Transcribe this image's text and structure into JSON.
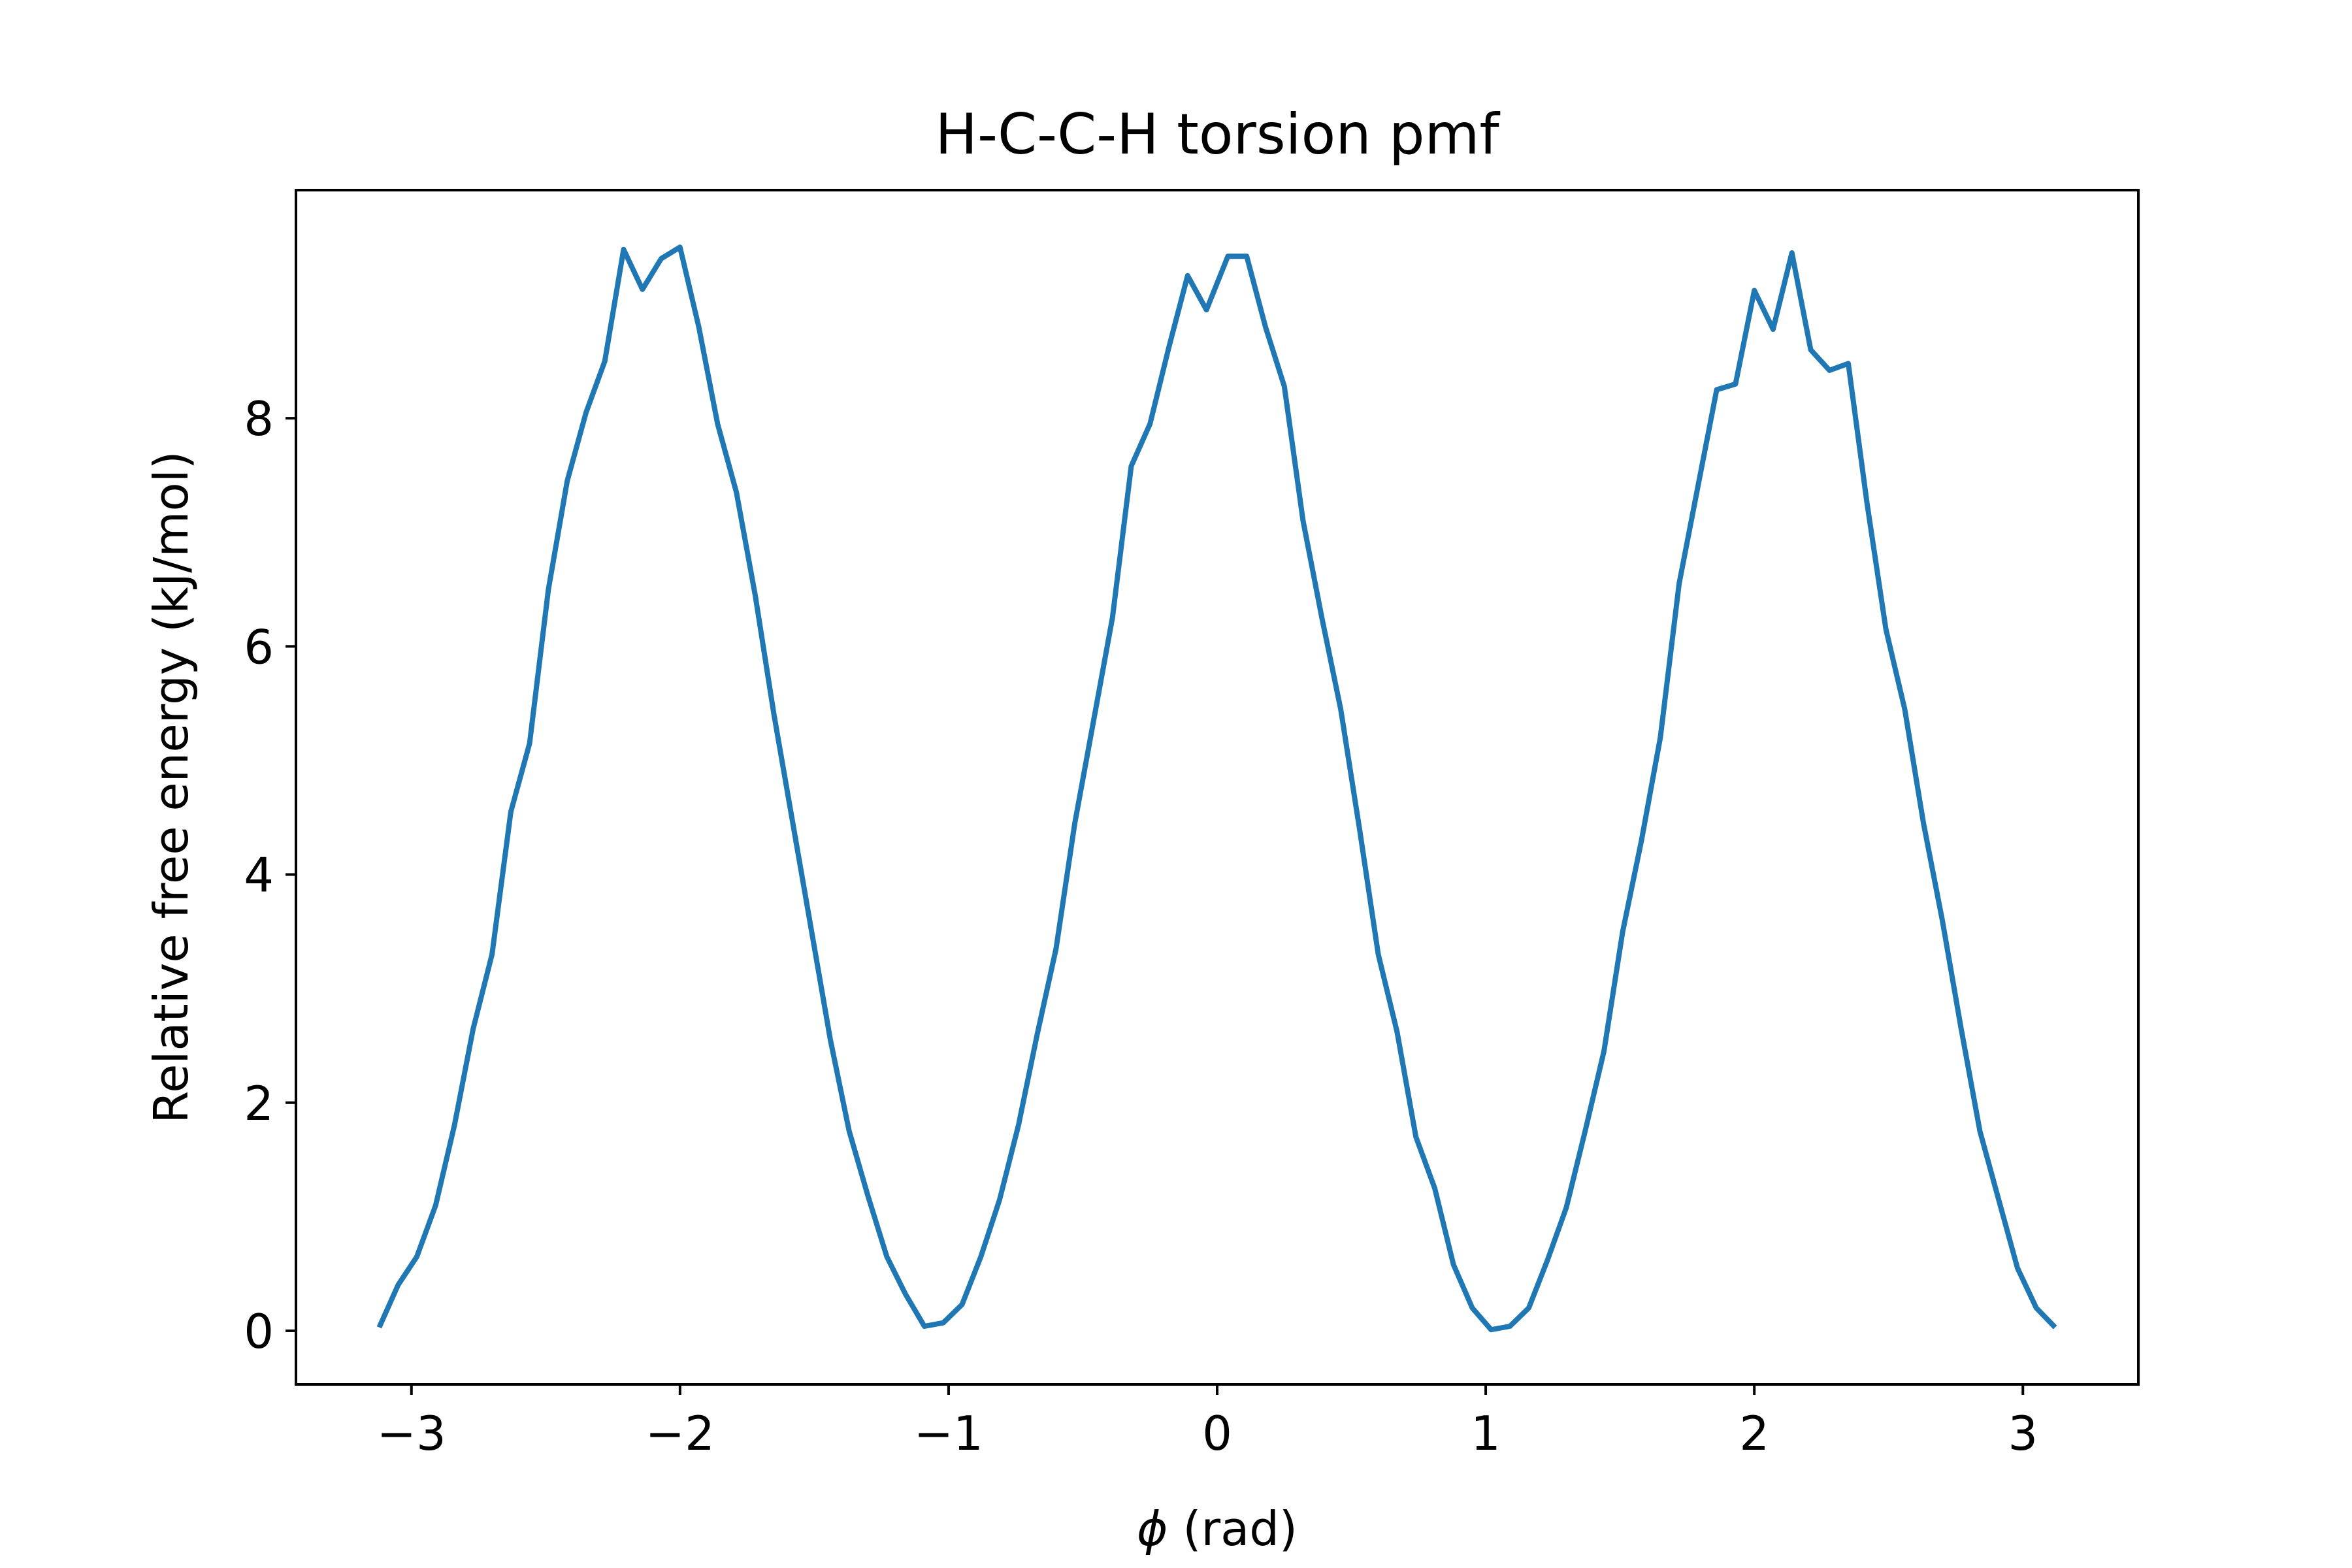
{
  "chart_data": {
    "type": "line",
    "title": "H-C-C-H torsion pmf",
    "xlabel": {
      "symbol": "ϕ",
      "text": " (rad)"
    },
    "ylabel": "Relative free energy (kJ/mol)",
    "xlim": [
      -3.43,
      3.43
    ],
    "ylim": [
      -0.47,
      10.0
    ],
    "xticks": [
      {
        "value": -3,
        "label": "−3"
      },
      {
        "value": -2,
        "label": "−2"
      },
      {
        "value": -1,
        "label": "−1"
      },
      {
        "value": 0,
        "label": "0"
      },
      {
        "value": 1,
        "label": "1"
      },
      {
        "value": 2,
        "label": "2"
      },
      {
        "value": 3,
        "label": "3"
      }
    ],
    "yticks": [
      {
        "value": 0,
        "label": "0"
      },
      {
        "value": 2,
        "label": "2"
      },
      {
        "value": 4,
        "label": "4"
      },
      {
        "value": 6,
        "label": "6"
      },
      {
        "value": 8,
        "label": "8"
      }
    ],
    "grid": false,
    "series": [
      {
        "color": "#1f77b4",
        "x": [
          -3.12,
          -3.05,
          -2.98,
          -2.91,
          -2.84,
          -2.77,
          -2.7,
          -2.63,
          -2.56,
          -2.49,
          -2.42,
          -2.35,
          -2.28,
          -2.21,
          -2.14,
          -2.07,
          -2.0,
          -1.93,
          -1.86,
          -1.79,
          -1.72,
          -1.65,
          -1.58,
          -1.51,
          -1.44,
          -1.37,
          -1.3,
          -1.23,
          -1.16,
          -1.09,
          -1.02,
          -0.95,
          -0.88,
          -0.81,
          -0.74,
          -0.67,
          -0.6,
          -0.53,
          -0.46,
          -0.39,
          -0.32,
          -0.25,
          -0.18,
          -0.11,
          -0.04,
          0.04,
          0.11,
          0.18,
          0.25,
          0.32,
          0.39,
          0.46,
          0.53,
          0.6,
          0.67,
          0.74,
          0.81,
          0.88,
          0.95,
          1.02,
          1.09,
          1.16,
          1.23,
          1.3,
          1.37,
          1.44,
          1.51,
          1.58,
          1.65,
          1.72,
          1.79,
          1.86,
          1.93,
          2.0,
          2.07,
          2.14,
          2.21,
          2.28,
          2.35,
          2.42,
          2.49,
          2.56,
          2.63,
          2.7,
          2.77,
          2.84,
          2.91,
          2.98,
          3.05,
          3.12
        ],
        "y": [
          0.03,
          0.4,
          0.65,
          1.1,
          1.8,
          2.65,
          3.3,
          4.55,
          5.15,
          6.5,
          7.45,
          8.05,
          8.5,
          9.48,
          9.13,
          9.4,
          9.5,
          8.8,
          7.95,
          7.35,
          6.45,
          5.4,
          4.45,
          3.5,
          2.55,
          1.75,
          1.18,
          0.65,
          0.32,
          0.04,
          0.07,
          0.23,
          0.65,
          1.15,
          1.8,
          2.6,
          3.35,
          4.45,
          5.35,
          6.25,
          7.58,
          7.95,
          8.62,
          9.25,
          8.95,
          9.42,
          9.42,
          8.8,
          8.28,
          7.1,
          6.25,
          5.45,
          4.4,
          3.3,
          2.62,
          1.7,
          1.25,
          0.58,
          0.2,
          0.01,
          0.04,
          0.2,
          0.62,
          1.08,
          1.75,
          2.45,
          3.5,
          4.3,
          5.2,
          6.55,
          7.4,
          8.25,
          8.3,
          9.12,
          8.78,
          9.45,
          8.6,
          8.42,
          8.48,
          7.25,
          6.15,
          5.45,
          4.45,
          3.6,
          2.65,
          1.75,
          1.15,
          0.55,
          0.2,
          0.03
        ]
      }
    ]
  }
}
